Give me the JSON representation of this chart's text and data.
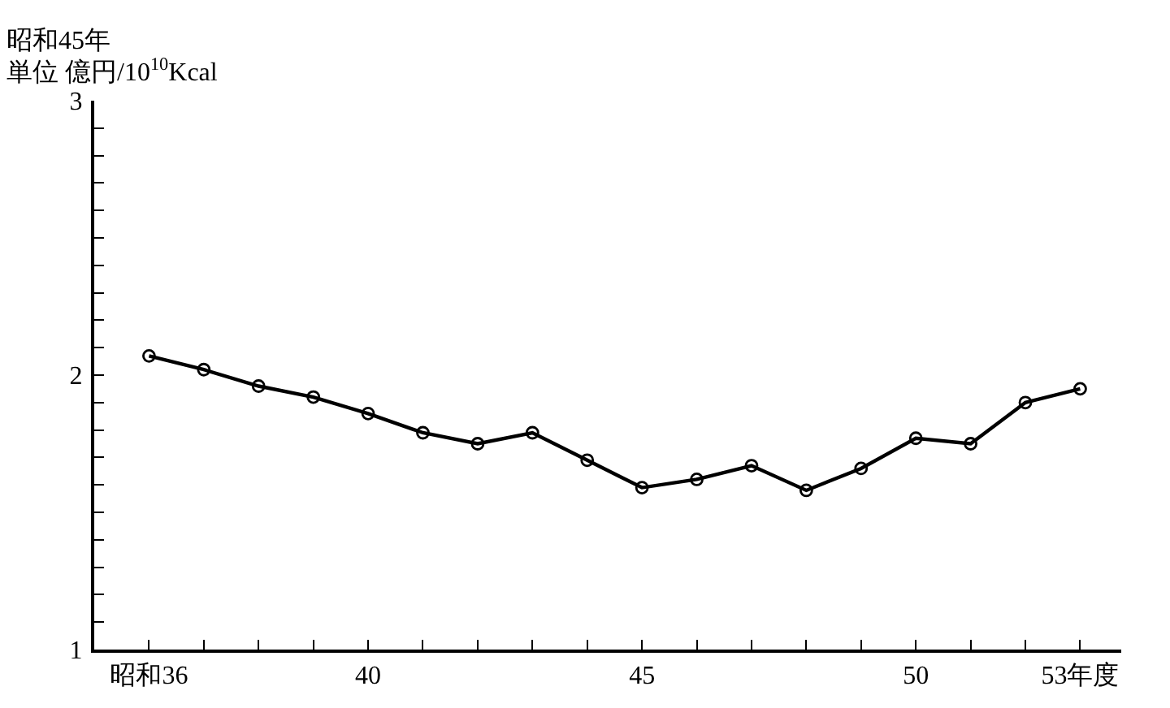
{
  "chart_data": {
    "type": "line",
    "ylabel": "単位 億円/10$^{10}$Kcal",
    "annotations": [
      "昭和45年"
    ],
    "x": [
      36,
      37,
      38,
      39,
      40,
      41,
      42,
      43,
      44,
      45,
      46,
      47,
      48,
      49,
      50,
      51,
      52,
      53
    ],
    "series": [
      {
        "color": "#000000",
        "values": [
          2.07,
          2.02,
          1.96,
          1.92,
          1.86,
          1.79,
          1.75,
          1.79,
          1.69,
          1.59,
          1.62,
          1.67,
          1.58,
          1.66,
          1.77,
          1.75,
          1.9,
          1.95
        ]
      }
    ],
    "xlim": [
      35,
      53.75
    ],
    "xticks": [
      {
        "value": 36,
        "label": "昭和36"
      },
      {
        "value": 37,
        "label": null
      },
      {
        "value": 38,
        "label": null
      },
      {
        "value": 39,
        "label": null
      },
      40,
      {
        "value": 41,
        "label": null
      },
      {
        "value": 42,
        "label": null
      },
      {
        "value": 43,
        "label": null
      },
      {
        "value": 44,
        "label": null
      },
      45,
      {
        "value": 46,
        "label": null
      },
      {
        "value": 47,
        "label": null
      },
      {
        "value": 48,
        "label": null
      },
      {
        "value": 49,
        "label": null
      },
      50,
      {
        "value": 51,
        "label": null
      },
      {
        "value": 52,
        "label": null
      },
      {
        "value": 53,
        "label": "53年度"
      }
    ],
    "ylim": [
      1,
      3
    ],
    "yticks": [
      1,
      {
        "value": 1.1,
        "label": null
      },
      {
        "value": 1.2,
        "label": null
      },
      {
        "value": 1.3,
        "label": null
      },
      {
        "value": 1.4,
        "label": null
      },
      {
        "value": 1.5,
        "label": null
      },
      {
        "value": 1.6,
        "label": null
      },
      {
        "value": 1.7,
        "label": null
      },
      {
        "value": 1.8,
        "label": null
      },
      {
        "value": 1.9,
        "label": null
      },
      2,
      {
        "value": 2.1,
        "label": null
      },
      {
        "value": 2.2,
        "label": null
      },
      {
        "value": 2.3,
        "label": null
      },
      {
        "value": 2.4,
        "label": null
      },
      {
        "value": 2.5,
        "label": null
      },
      {
        "value": 2.6,
        "label": null
      },
      {
        "value": 2.7,
        "label": null
      },
      {
        "value": 2.8,
        "label": null
      },
      {
        "value": 2.9,
        "label": null
      },
      3
    ],
    "grid": false,
    "marker": "circle",
    "line_style": "solid"
  }
}
